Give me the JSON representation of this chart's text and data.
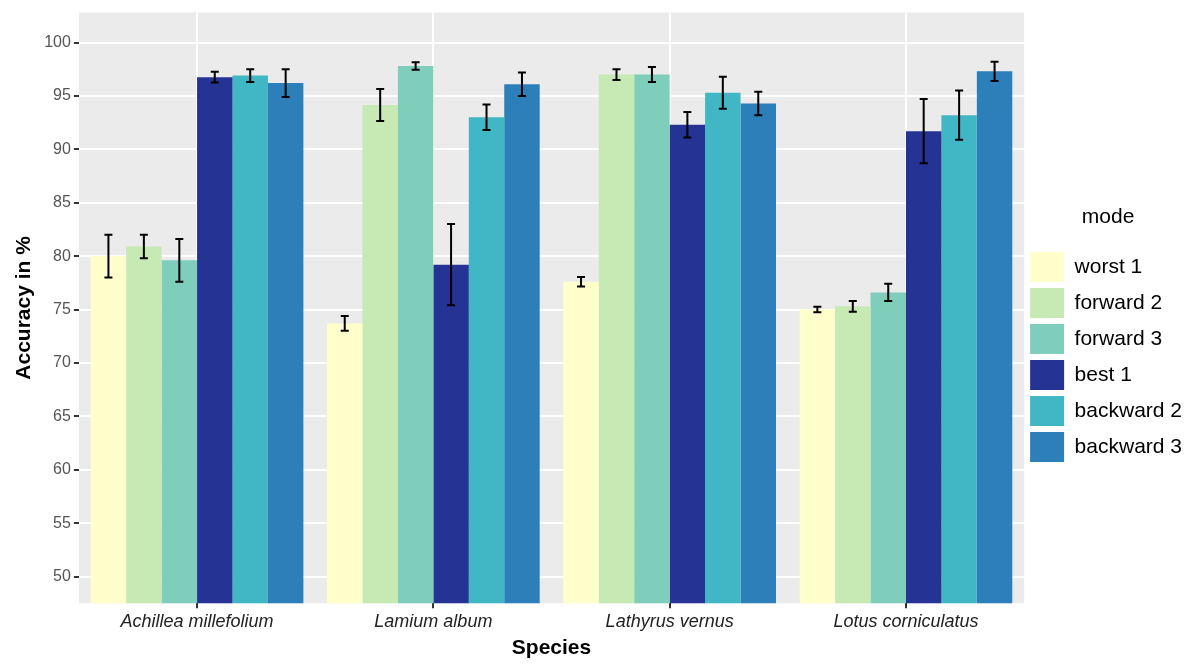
{
  "chart_data": {
    "type": "bar",
    "xlabel": "Species",
    "ylabel": "Accuracy in %",
    "legend_title": "mode",
    "categories": [
      "Achillea millefolium",
      "Lamium album",
      "Lathyrus vernus",
      "Lotus corniculatus"
    ],
    "series": [
      {
        "name": "worst 1",
        "color": "#ffffcc",
        "values": [
          80.0,
          73.7,
          77.6,
          75.0
        ],
        "errors": [
          2.0,
          0.7,
          0.45,
          0.25
        ]
      },
      {
        "name": "forward 2",
        "color": "#c7e9b4",
        "values": [
          80.9,
          94.15,
          97.0,
          75.3
        ],
        "errors": [
          1.1,
          1.5,
          0.5,
          0.5
        ]
      },
      {
        "name": "forward 3",
        "color": "#7fcdbb",
        "values": [
          79.6,
          97.8,
          97.0,
          76.6
        ],
        "errors": [
          2.0,
          0.35,
          0.7,
          0.8
        ]
      },
      {
        "name": "best 1",
        "color": "#253494",
        "values": [
          96.75,
          79.2,
          92.3,
          91.7
        ],
        "errors": [
          0.5,
          3.8,
          1.2,
          3.0
        ]
      },
      {
        "name": "backward 2",
        "color": "#41b6c4",
        "values": [
          96.9,
          93.0,
          95.3,
          93.2
        ],
        "errors": [
          0.6,
          1.2,
          1.5,
          2.3
        ]
      },
      {
        "name": "backward 3",
        "color": "#2c7fb8",
        "values": [
          96.2,
          96.1,
          94.3,
          97.3
        ],
        "errors": [
          1.3,
          1.1,
          1.1,
          0.9
        ]
      }
    ],
    "ylim": [
      47.5,
      102.8
    ],
    "yticks": [
      50,
      55,
      60,
      65,
      70,
      75,
      80,
      85,
      90,
      95,
      100
    ],
    "grid": true,
    "legend": "right"
  }
}
